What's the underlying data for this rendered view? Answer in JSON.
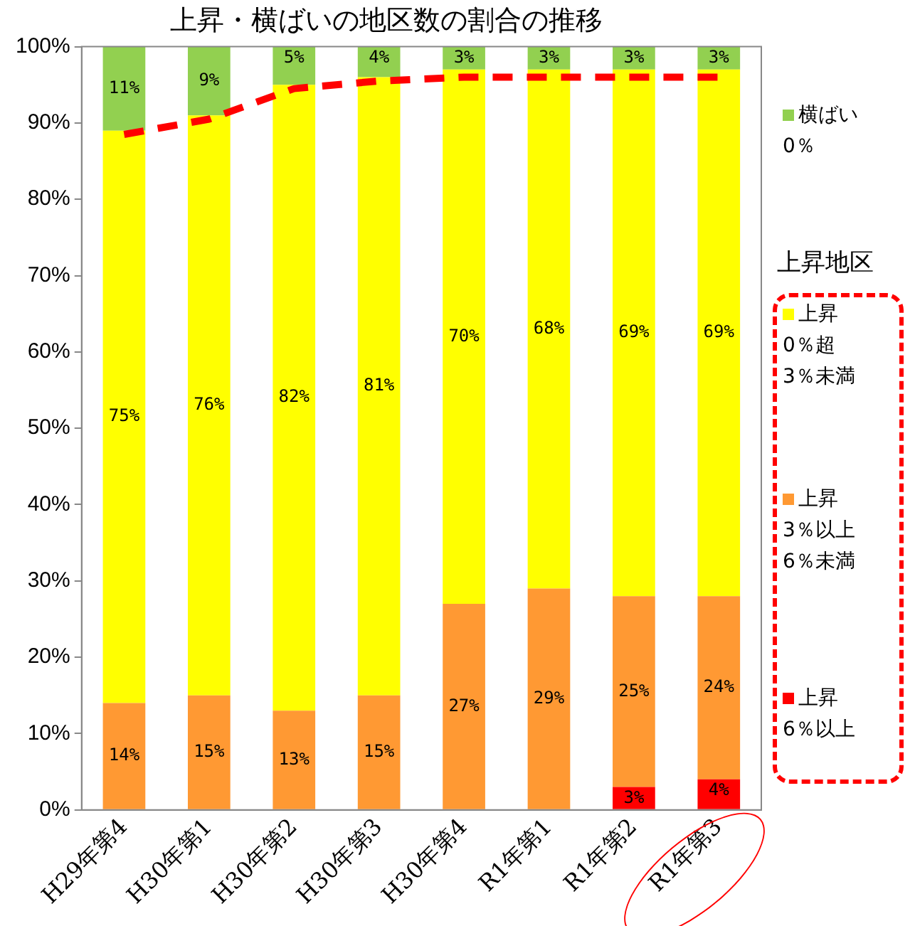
{
  "chart_data": {
    "type": "bar",
    "stacked": true,
    "title": "上昇・横ばいの地区数の割合の推移",
    "legend_title": "上昇地区",
    "legend": "right",
    "grid": false,
    "categories": [
      "H29年第4",
      "H30年第1",
      "H30年第2",
      "H30年第3",
      "H30年第4",
      "R1年第1",
      "R1年第2",
      "R1年第3"
    ],
    "ylim": [
      0,
      100
    ],
    "yticks": [
      {
        "value": 0,
        "label": "0%"
      },
      {
        "value": 10,
        "label": "10%"
      },
      {
        "value": 20,
        "label": "20%"
      },
      {
        "value": 30,
        "label": "30%"
      },
      {
        "value": 40,
        "label": "40%"
      },
      {
        "value": 50,
        "label": "50%"
      },
      {
        "value": 60,
        "label": "60%"
      },
      {
        "value": 70,
        "label": "70%"
      },
      {
        "value": 80,
        "label": "80%"
      },
      {
        "value": 90,
        "label": "90%"
      },
      {
        "value": 100,
        "label": "100%"
      }
    ],
    "series": [
      {
        "name": "上昇\n6％以上",
        "color": "#ff0000",
        "values": [
          0,
          0,
          0,
          0,
          0,
          0,
          3,
          4
        ],
        "value_labels": [
          null,
          null,
          null,
          null,
          null,
          null,
          "3%",
          "4%"
        ]
      },
      {
        "name": "上昇\n3％以上\n6％未満",
        "color": "#ff9933",
        "values": [
          14,
          15,
          13,
          15,
          27,
          29,
          25,
          24
        ],
        "value_labels": [
          "14%",
          "15%",
          "13%",
          "15%",
          "27%",
          "29%",
          "25%",
          "24%"
        ]
      },
      {
        "name": "上昇\n0％超\n3％未満",
        "color": "#ffff00",
        "values": [
          75,
          76,
          82,
          81,
          70,
          68,
          69,
          69
        ],
        "value_labels": [
          "75%",
          "76%",
          "82%",
          "81%",
          "70%",
          "68%",
          "69%",
          "69%"
        ]
      },
      {
        "name": "横ばい\n0％",
        "color": "#92d050",
        "values": [
          11,
          9,
          5,
          4,
          3,
          3,
          3,
          3
        ],
        "value_labels": [
          "11%",
          "9%",
          "5%",
          "4%",
          "3%",
          "3%",
          "3%",
          "3%"
        ]
      },
      {
        "type": "line",
        "color": "#ff0000",
        "line_style": "dashed",
        "marker": "none",
        "values": [
          88.5,
          90.5,
          94.5,
          95.5,
          96,
          96,
          96,
          96
        ]
      }
    ]
  }
}
